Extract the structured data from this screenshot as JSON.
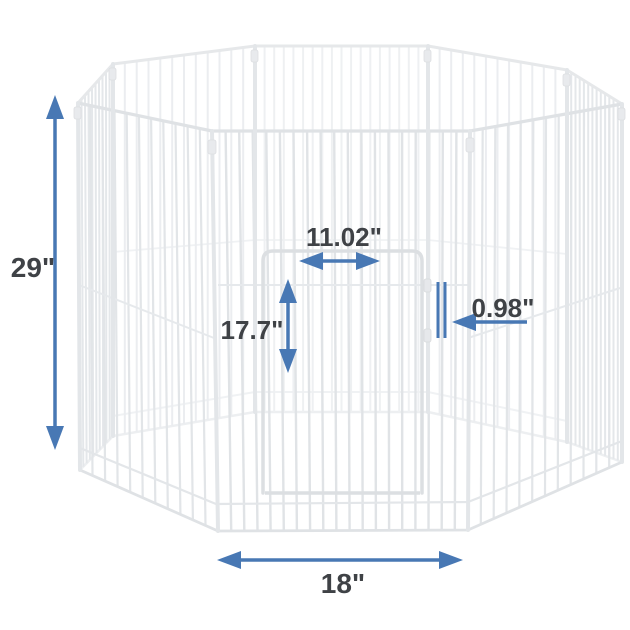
{
  "diagram": {
    "description": "Octagonal 8-panel white wire pet exercise pen with front sliding door, annotated with product dimensions",
    "colors": {
      "arrow_blue": "#4878b4",
      "label_gray": "#3f4246",
      "wire_white": "#e7e9eb",
      "background": "#ffffff"
    },
    "annotations": {
      "pen_height": {
        "label": "29\"",
        "meaning": "overall panel height, vertical double arrow at left"
      },
      "door_width": {
        "label": "11.02\"",
        "meaning": "door opening width, horizontal double arrow"
      },
      "door_height": {
        "label": "17.7\"",
        "meaning": "door opening height, vertical double arrow"
      },
      "wire_gap": {
        "label": "0.98\"",
        "meaning": "spacing between wires, arrow pointing left to two tick marks"
      },
      "panel_width": {
        "label": "18\"",
        "meaning": "single panel width, horizontal double arrow at bottom"
      }
    }
  }
}
